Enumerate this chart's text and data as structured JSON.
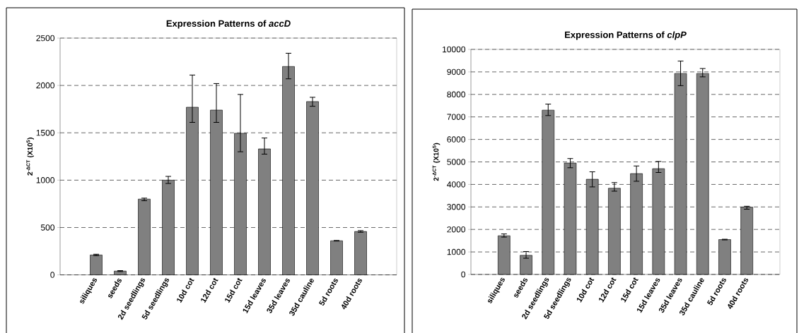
{
  "chart_data": [
    {
      "type": "bar",
      "title": "Expression Patterns of *accD*",
      "ylabel": "2$^{-ΔCT}$ (X10$^{5}$)",
      "categories": [
        null,
        "siliques",
        "seeds",
        "2d seedlings",
        "5d seedlings",
        "10d cot",
        "12d cot",
        "15d cot",
        "15d leaves",
        "35d leaves",
        "35d cauline",
        "5d roots",
        "40d roots",
        null
      ],
      "values": [
        null,
        210,
        40,
        800,
        1000,
        1770,
        1740,
        1495,
        1330,
        2200,
        1830,
        360,
        458,
        null
      ],
      "errors": [
        null,
        [
          203,
          218
        ],
        [
          35,
          45
        ],
        [
          783,
          810
        ],
        [
          965,
          1040
        ],
        [
          1610,
          2110
        ],
        [
          1610,
          2020
        ],
        [
          1300,
          1905
        ],
        [
          1275,
          1445
        ],
        [
          2070,
          2340
        ],
        [
          1780,
          1875
        ],
        3,
        [
          450,
          467
        ],
        null
      ],
      "color": "#808080",
      "ylim": [
        0,
        2500
      ],
      "yticks": [
        0,
        500,
        1000,
        1500,
        2000,
        2500
      ],
      "grid": "y"
    },
    {
      "type": "bar",
      "title": "Expression Patterns of *clpP*",
      "ylabel": "2$^{-ΔCT}$ (X10$^{5}$)",
      "categories": [
        null,
        "siliques",
        "seeds",
        "2d seedlings",
        "5d seedlings",
        "10d cot",
        "12d cot",
        "15d cot",
        "15d leaves",
        "35d leaves",
        "35d cauline",
        "5d roots",
        "40d roots",
        null
      ],
      "values": [
        null,
        1720,
        850,
        7300,
        4950,
        4230,
        3830,
        4480,
        4700,
        8930,
        8930,
        1550,
        2990,
        null
      ],
      "errors": [
        null,
        [
          1660,
          1800
        ],
        [
          720,
          1020
        ],
        [
          7060,
          7570
        ],
        [
          4740,
          5150
        ],
        [
          3890,
          4560
        ],
        [
          3700,
          4080
        ],
        [
          4140,
          4820
        ],
        [
          4530,
          5020
        ],
        [
          8390,
          9480
        ],
        [
          8780,
          9150
        ],
        15,
        [
          2900,
          3030
        ],
        null
      ],
      "color": "#808080",
      "ylim": [
        0,
        10000
      ],
      "yticks": [
        0,
        1000,
        2000,
        3000,
        4000,
        5000,
        6000,
        7000,
        8000,
        9000,
        10000
      ],
      "grid": "y"
    }
  ]
}
